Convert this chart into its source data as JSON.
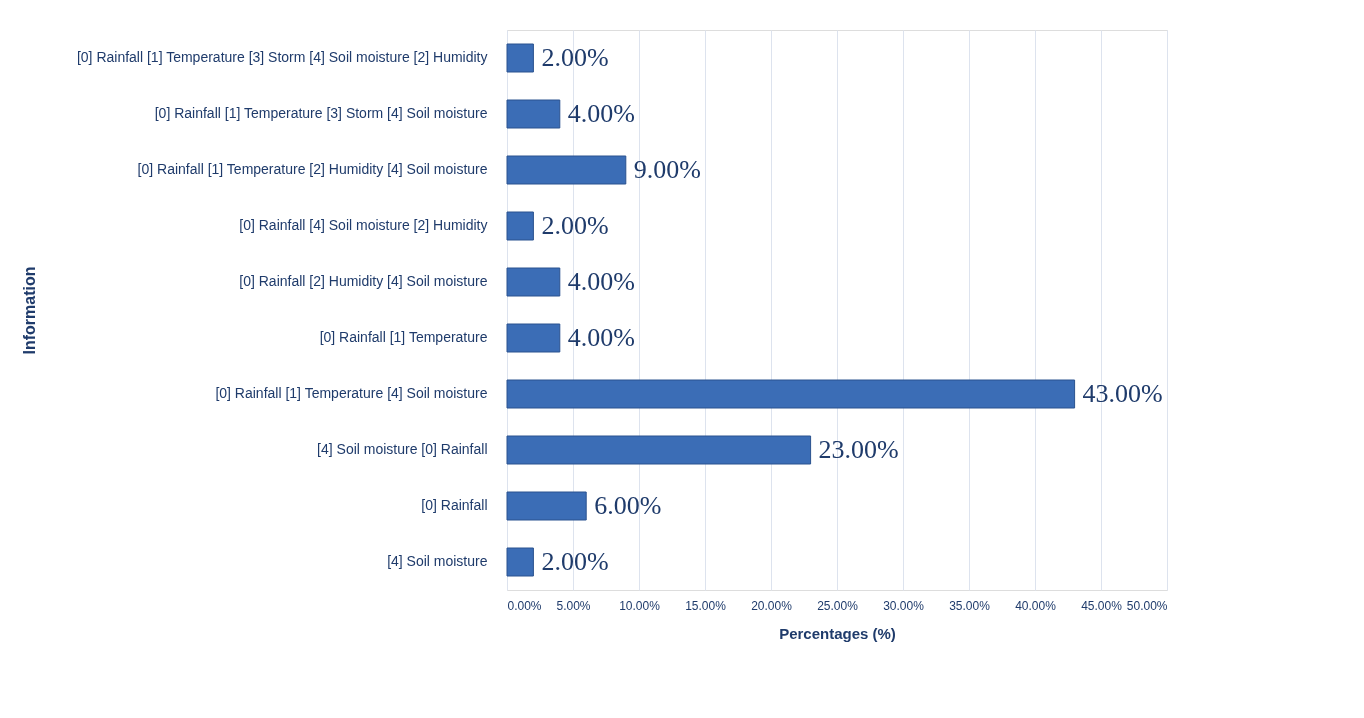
{
  "chart_data": {
    "type": "bar",
    "orientation": "horizontal",
    "xlabel": "Percentages (%)",
    "ylabel": "Information",
    "categories": [
      "[0] Rainfall  [1] Temperature [3] Storm [4] Soil moisture [2] Humidity",
      "[0] Rainfall  [1] Temperature [3] Storm [4] Soil moisture",
      "[0] Rainfall  [1] Temperature [2] Humidity [4] Soil moisture",
      "[0] Rainfall  [4] Soil moisture [2] Humidity",
      "[0] Rainfall  [2] Humidity [4] Soil moisture",
      "[0] Rainfall  [1] Temperature",
      "[0] Rainfall  [1] Temperature [4] Soil moisture",
      "[4] Soil moisture [0] Rainfall",
      "[0] Rainfall",
      "[4] Soil moisture"
    ],
    "values": [
      2,
      4,
      9,
      2,
      4,
      4,
      43,
      23,
      6,
      2
    ],
    "value_labels": [
      "2.00%",
      "4.00%",
      "9.00%",
      "2.00%",
      "4.00%",
      "4.00%",
      "43.00%",
      "23.00%",
      "6.00%",
      "2.00%"
    ],
    "color": "#3b6db6",
    "xlim": [
      0,
      50
    ],
    "xticks": [
      {
        "value": 0,
        "label": "0.00%"
      },
      {
        "value": 5,
        "label": "5.00%"
      },
      {
        "value": 10,
        "label": "10.00%"
      },
      {
        "value": 15,
        "label": "15.00%"
      },
      {
        "value": 20,
        "label": "20.00%"
      },
      {
        "value": 25,
        "label": "25.00%"
      },
      {
        "value": 30,
        "label": "30.00%"
      },
      {
        "value": 35,
        "label": "35.00%"
      },
      {
        "value": 40,
        "label": "40.00%"
      },
      {
        "value": 45,
        "label": "45.00%"
      },
      {
        "value": 50,
        "label": "50.00%"
      }
    ],
    "grid": "x"
  }
}
